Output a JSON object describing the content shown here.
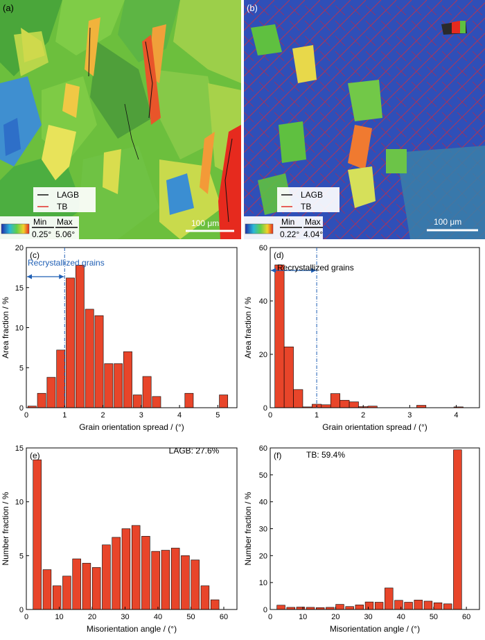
{
  "maps": [
    {
      "label": "(a)",
      "legend": {
        "lagb": "LAGB",
        "tb": "TB",
        "min_label": "Min",
        "max_label": "Max",
        "min_value": "0.25°",
        "max_value": "5.06°"
      },
      "scale_bar": "100 μm"
    },
    {
      "label": "(b)",
      "legend": {
        "lagb": "LAGB",
        "tb": "TB",
        "min_label": "Min",
        "max_label": "Max",
        "min_value": "0.22°",
        "max_value": "4.04°"
      },
      "scale_bar": "100 μm"
    }
  ],
  "colors": {
    "bar": "#e8452a",
    "lagb_line": "#000000",
    "tb_line": "#e0201a",
    "annotation": "#1f5fb5"
  },
  "chart_data": [
    {
      "id": "c",
      "panel_label": "(c)",
      "type": "bar",
      "xlabel": "Grain orientation spread / (°)",
      "ylabel": "Area fraction / %",
      "xlim": [
        0,
        5.5
      ],
      "ylim": [
        0,
        20
      ],
      "xticks": [
        0,
        1,
        2,
        3,
        4,
        5
      ],
      "yticks": [
        0,
        5,
        10,
        15,
        20
      ],
      "bar_width": 0.22,
      "x": [
        0.15,
        0.4,
        0.65,
        0.9,
        1.15,
        1.4,
        1.65,
        1.9,
        2.15,
        2.4,
        2.65,
        2.9,
        3.15,
        3.4,
        4.25,
        5.15
      ],
      "values": [
        0.2,
        1.8,
        3.8,
        7.2,
        16.2,
        17.8,
        12.3,
        11.5,
        5.5,
        5.5,
        7.0,
        1.6,
        3.9,
        1.4,
        1.8,
        1.6
      ],
      "annotation": {
        "text": "Recrystallized grains",
        "x": 1.0,
        "color": "#1f5fb5"
      }
    },
    {
      "id": "d",
      "panel_label": "(d)",
      "type": "bar",
      "xlabel": "Grain orientation spread / (°)",
      "ylabel": "Area fraction / %",
      "xlim": [
        0,
        4.5
      ],
      "ylim": [
        0,
        60
      ],
      "xticks": [
        0,
        1,
        2,
        3,
        4
      ],
      "yticks": [
        0,
        20,
        40,
        60
      ],
      "bar_width": 0.2,
      "x": [
        0.2,
        0.4,
        0.6,
        0.8,
        1.0,
        1.2,
        1.4,
        1.6,
        1.8,
        2.0,
        2.2,
        3.25,
        4.05
      ],
      "values": [
        53.5,
        22.8,
        6.8,
        0.3,
        1.3,
        1.1,
        5.3,
        2.8,
        2.2,
        0.4,
        0.6,
        0.9,
        0.3
      ],
      "annotation": {
        "text": "Recrystallized grains",
        "x": 1.0,
        "color": "#1f5fb5"
      }
    },
    {
      "id": "e",
      "panel_label": "(e)",
      "type": "bar",
      "xlabel": "Misorientation angle / (°)",
      "ylabel": "Number fraction / %",
      "xlim": [
        0,
        64
      ],
      "ylim": [
        0,
        15
      ],
      "xticks": [
        0,
        10,
        20,
        30,
        40,
        50,
        60
      ],
      "yticks": [
        0,
        5,
        10,
        15
      ],
      "bar_width": 2.5,
      "x": [
        3.3,
        6.3,
        9.3,
        12.3,
        15.3,
        18.3,
        21.3,
        24.3,
        27.3,
        30.3,
        33.3,
        36.3,
        39.3,
        42.3,
        45.3,
        48.3,
        51.3,
        54.3,
        57.3,
        60.3
      ],
      "values": [
        13.9,
        3.7,
        2.2,
        3.1,
        4.7,
        4.3,
        3.9,
        6.0,
        6.7,
        7.5,
        7.8,
        6.8,
        5.4,
        5.5,
        5.7,
        5.0,
        4.6,
        2.2,
        0.9,
        0
      ],
      "annotation": {
        "text": "LAGB: 27.6%"
      }
    },
    {
      "id": "f",
      "panel_label": "(f)",
      "type": "bar",
      "xlabel": "Misorientation angle / (°)",
      "ylabel": "Number fraction / %",
      "xlim": [
        0,
        64
      ],
      "ylim": [
        0,
        60
      ],
      "xticks": [
        0,
        10,
        20,
        30,
        40,
        50,
        60
      ],
      "yticks": [
        0,
        10,
        20,
        30,
        40,
        50,
        60
      ],
      "bar_width": 2.5,
      "x": [
        3.3,
        6.3,
        9.3,
        12.3,
        15.3,
        18.3,
        21.3,
        24.3,
        27.3,
        30.3,
        33.3,
        36.3,
        39.3,
        42.3,
        45.3,
        48.3,
        51.3,
        54.3,
        57.3,
        60.3
      ],
      "values": [
        1.6,
        0.8,
        0.9,
        0.8,
        0.7,
        0.8,
        1.9,
        1.1,
        1.7,
        2.8,
        2.7,
        8.0,
        3.4,
        2.7,
        3.5,
        3.1,
        2.5,
        2.1,
        59.3,
        0
      ],
      "annotation": {
        "text": "TB: 59.4%"
      }
    }
  ]
}
